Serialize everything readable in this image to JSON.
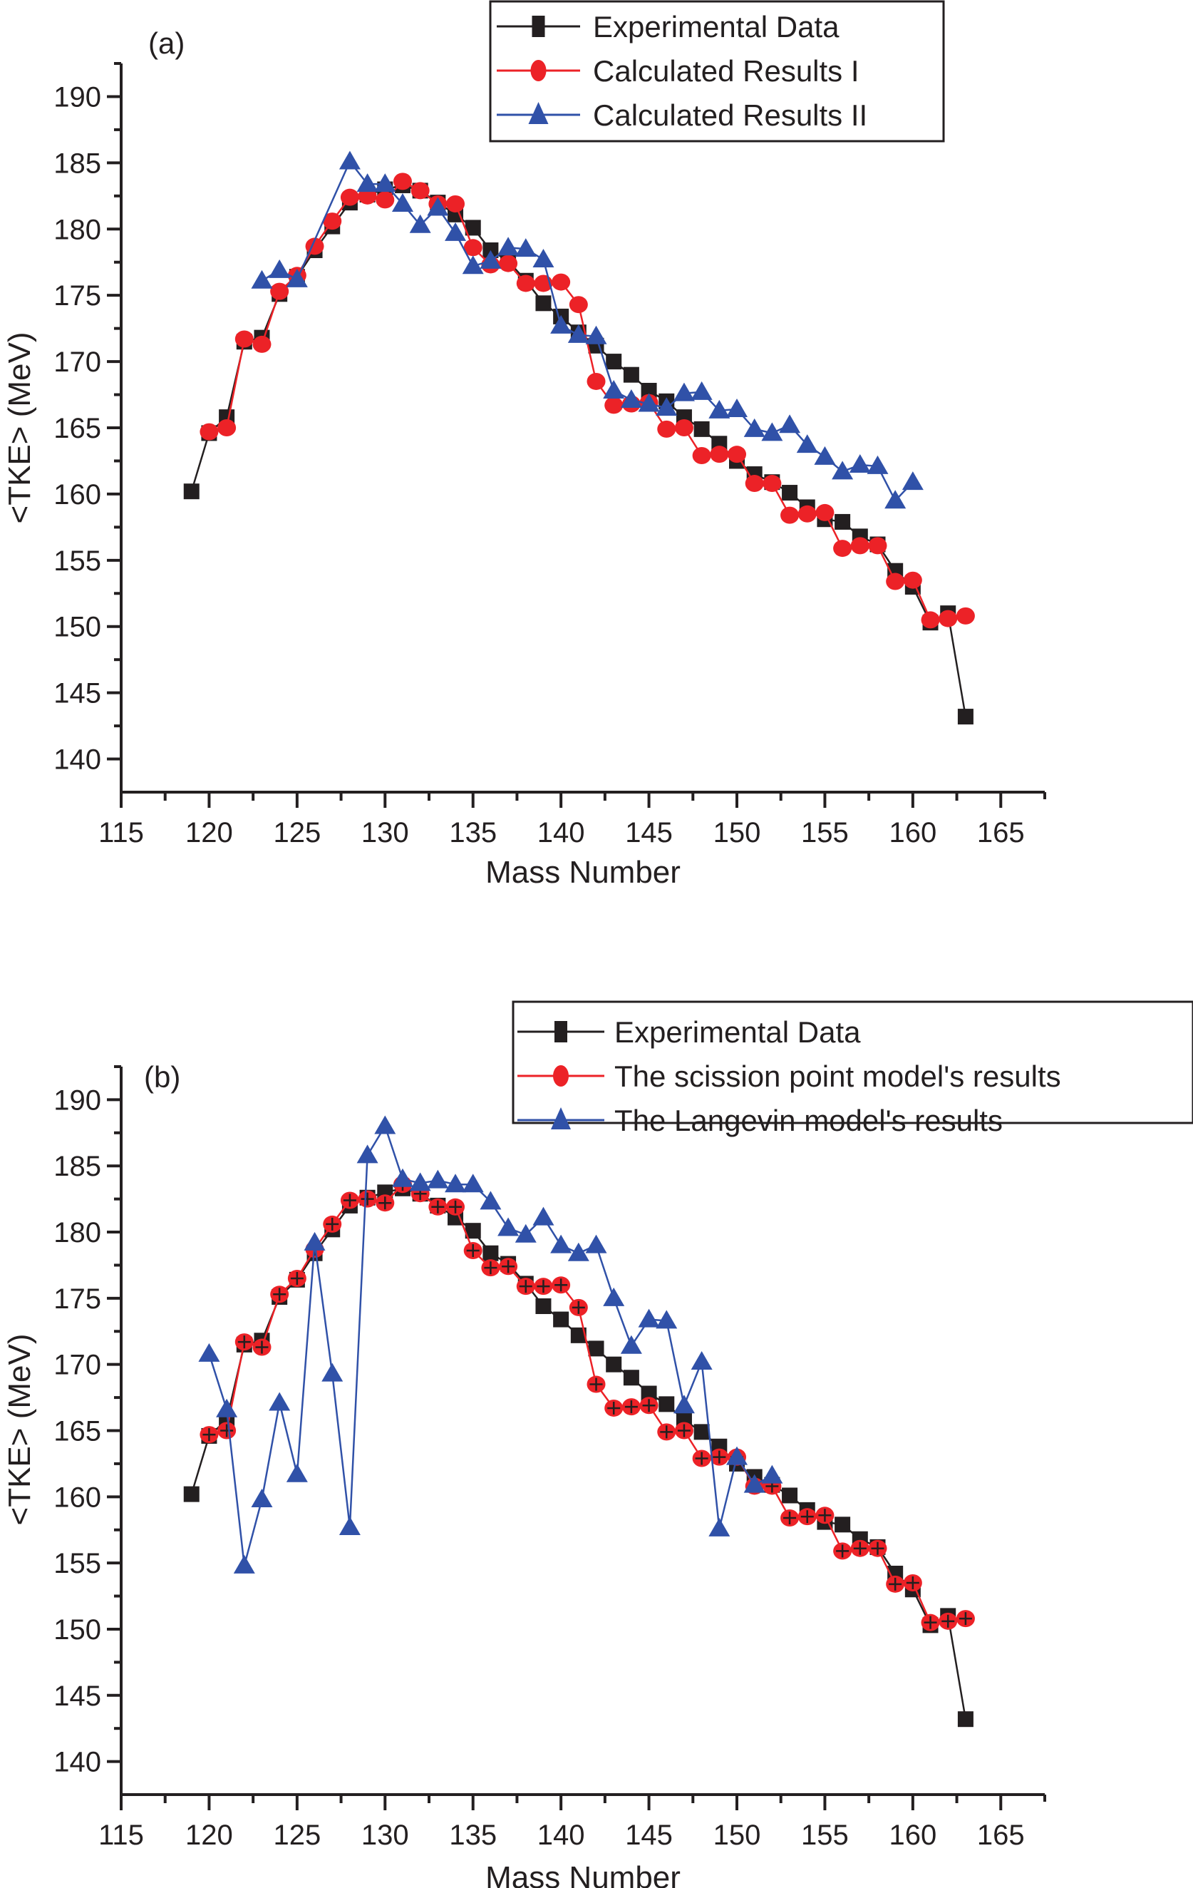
{
  "colors": {
    "experimental": "#231f20",
    "calc_red": "#ec2227",
    "calc_blue": "#3051a8",
    "axis": "#231f20"
  },
  "chart_data": [
    {
      "type": "line",
      "panel_label": "(a)",
      "xlabel": "Mass Number",
      "ylabel": "<TKE> (MeV)",
      "xlim": [
        115,
        167.5
      ],
      "ylim": [
        137.5,
        192.5
      ],
      "xticks": [
        115,
        120,
        125,
        130,
        135,
        140,
        145,
        150,
        155,
        160,
        165
      ],
      "yticks": [
        140,
        145,
        150,
        155,
        160,
        165,
        170,
        175,
        180,
        185,
        190
      ],
      "grid": false,
      "legend_position": "top-right",
      "series": [
        {
          "name": "Experimental Data",
          "marker": "square",
          "color_key": "experimental",
          "x": [
            119,
            120,
            121,
            122,
            123,
            124,
            125,
            126,
            127,
            128,
            129,
            130,
            131,
            132,
            133,
            134,
            135,
            136,
            137,
            138,
            139,
            140,
            141,
            142,
            143,
            144,
            145,
            146,
            147,
            148,
            149,
            150,
            151,
            152,
            153,
            154,
            155,
            156,
            157,
            158,
            159,
            160,
            161,
            162,
            163
          ],
          "y": [
            160.2,
            164.6,
            165.8,
            171.5,
            171.8,
            175.1,
            176.4,
            178.4,
            180.2,
            182.0,
            182.6,
            183.0,
            183.3,
            182.9,
            182.0,
            181.1,
            180.1,
            178.4,
            177.6,
            176.1,
            174.4,
            173.4,
            172.2,
            171.2,
            170.0,
            169.0,
            167.8,
            167.0,
            165.8,
            164.9,
            163.8,
            162.5,
            161.5,
            160.9,
            160.1,
            159.0,
            158.1,
            157.9,
            156.8,
            156.2,
            154.2,
            153.0,
            150.3,
            151.0,
            143.2
          ]
        },
        {
          "name": "Calculated Results I",
          "marker": "circle",
          "color_key": "calc_red",
          "x": [
            120,
            121,
            122,
            123,
            124,
            125,
            126,
            127,
            128,
            129,
            130,
            131,
            132,
            133,
            134,
            135,
            136,
            137,
            138,
            139,
            140,
            141,
            142,
            143,
            144,
            145,
            146,
            147,
            148,
            149,
            150,
            151,
            152,
            153,
            154,
            155,
            156,
            157,
            158,
            159,
            160,
            161,
            162,
            163
          ],
          "y": [
            164.7,
            165.0,
            171.7,
            171.3,
            175.3,
            176.5,
            178.7,
            180.6,
            182.4,
            182.5,
            182.2,
            183.6,
            182.9,
            181.9,
            181.9,
            178.6,
            177.3,
            177.4,
            175.9,
            175.9,
            176.0,
            174.3,
            168.5,
            166.7,
            166.8,
            166.9,
            164.9,
            165.0,
            162.9,
            163.0,
            163.0,
            160.8,
            160.8,
            158.4,
            158.5,
            158.6,
            155.9,
            156.1,
            156.1,
            153.4,
            153.5,
            150.5,
            150.6,
            150.8
          ]
        },
        {
          "name": "Calculated Results II",
          "marker": "triangle",
          "color_key": "calc_blue",
          "x": [
            123,
            124,
            125,
            128,
            129,
            130,
            131,
            132,
            133,
            134,
            135,
            136,
            137,
            138,
            139,
            140,
            141,
            142,
            143,
            144,
            145,
            146,
            147,
            148,
            149,
            150,
            151,
            152,
            153,
            154,
            155,
            156,
            157,
            158,
            159,
            160
          ],
          "y": [
            176.1,
            176.9,
            176.2,
            185.1,
            183.4,
            183.4,
            181.9,
            180.3,
            181.6,
            179.7,
            177.2,
            177.6,
            178.6,
            178.5,
            177.7,
            172.7,
            172.0,
            171.9,
            167.8,
            167.1,
            166.8,
            166.5,
            167.6,
            167.7,
            166.3,
            166.4,
            164.9,
            164.6,
            165.2,
            163.7,
            162.8,
            161.7,
            162.2,
            162.1,
            159.5,
            160.9
          ]
        }
      ]
    },
    {
      "type": "line",
      "panel_label": "(b)",
      "xlabel": "Mass Number",
      "ylabel": "<TKE> (MeV)",
      "xlim": [
        115,
        167.5
      ],
      "ylim": [
        137.5,
        192.5
      ],
      "xticks": [
        115,
        120,
        125,
        130,
        135,
        140,
        145,
        150,
        155,
        160,
        165
      ],
      "yticks": [
        140,
        145,
        150,
        155,
        160,
        165,
        170,
        175,
        180,
        185,
        190
      ],
      "grid": false,
      "legend_position": "top-right",
      "series": [
        {
          "name": "Experimental Data",
          "marker": "square",
          "color_key": "experimental",
          "x": [
            119,
            120,
            121,
            122,
            123,
            124,
            125,
            126,
            127,
            128,
            129,
            130,
            131,
            132,
            133,
            134,
            135,
            136,
            137,
            138,
            139,
            140,
            141,
            142,
            143,
            144,
            145,
            146,
            147,
            148,
            149,
            150,
            151,
            152,
            153,
            154,
            155,
            156,
            157,
            158,
            159,
            160,
            161,
            162,
            163
          ],
          "y": [
            160.2,
            164.6,
            165.8,
            171.5,
            171.8,
            175.1,
            176.4,
            178.4,
            180.2,
            182.0,
            182.6,
            183.0,
            183.3,
            182.9,
            182.0,
            181.1,
            180.1,
            178.4,
            177.6,
            176.1,
            174.4,
            173.4,
            172.2,
            171.2,
            170.0,
            169.0,
            167.8,
            167.0,
            165.8,
            164.9,
            163.8,
            162.5,
            161.5,
            160.9,
            160.1,
            159.0,
            158.1,
            157.9,
            156.8,
            156.2,
            154.2,
            153.0,
            150.3,
            151.0,
            143.2
          ]
        },
        {
          "name": "The scission point model's results",
          "marker": "circle",
          "color_key": "calc_red",
          "error_crosses": true,
          "x": [
            120,
            121,
            122,
            123,
            124,
            125,
            126,
            127,
            128,
            129,
            130,
            131,
            132,
            133,
            134,
            135,
            136,
            137,
            138,
            139,
            140,
            141,
            142,
            143,
            144,
            145,
            146,
            147,
            148,
            149,
            150,
            151,
            152,
            153,
            154,
            155,
            156,
            157,
            158,
            159,
            160,
            161,
            162,
            163
          ],
          "y": [
            164.7,
            165.0,
            171.7,
            171.3,
            175.3,
            176.5,
            178.7,
            180.6,
            182.4,
            182.5,
            182.2,
            183.6,
            182.9,
            181.9,
            181.9,
            178.6,
            177.3,
            177.4,
            175.9,
            175.9,
            176.0,
            174.3,
            168.5,
            166.7,
            166.8,
            166.9,
            164.9,
            165.0,
            162.9,
            163.0,
            163.0,
            160.8,
            160.8,
            158.4,
            158.5,
            158.6,
            155.9,
            156.1,
            156.1,
            153.4,
            153.5,
            150.5,
            150.6,
            150.8
          ]
        },
        {
          "name": "The Langevin model's results",
          "marker": "triangle",
          "color_key": "calc_blue",
          "x": [
            120,
            121,
            122,
            123,
            124,
            125,
            126,
            127,
            128,
            129,
            130,
            131,
            132,
            133,
            134,
            135,
            136,
            137,
            138,
            139,
            140,
            141,
            142,
            143,
            144,
            145,
            146,
            147,
            148,
            149,
            150,
            151,
            152
          ],
          "y": [
            170.8,
            166.6,
            154.8,
            159.8,
            167.1,
            161.7,
            179.2,
            169.3,
            157.7,
            185.8,
            188.0,
            184.0,
            183.7,
            183.9,
            183.6,
            183.6,
            182.3,
            180.3,
            179.8,
            181.1,
            179.0,
            178.4,
            179.0,
            175.0,
            171.4,
            173.4,
            173.3,
            166.9,
            170.2,
            157.6,
            163.0,
            160.9,
            161.6
          ]
        }
      ]
    }
  ]
}
